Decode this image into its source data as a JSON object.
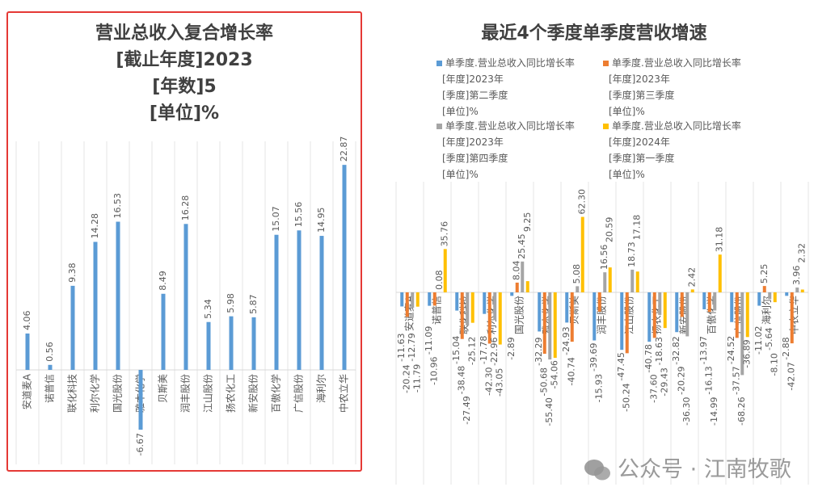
{
  "chart_data": [
    {
      "type": "bar",
      "title_lines": [
        "营业总收入复合增长率",
        "[截止年度]2023",
        "[年数]5",
        "[单位]%"
      ],
      "categories": [
        "安道麦A",
        "诺普信",
        "联化科技",
        "利尔化学",
        "国光股份",
        "雅本化学",
        "贝斯美",
        "润丰股份",
        "江山股份",
        "扬农化工",
        "新安股份",
        "百傲化学",
        "广信股份",
        "海利尔",
        "中农立华"
      ],
      "values": [
        4.06,
        0.56,
        9.38,
        14.28,
        16.53,
        -6.67,
        8.49,
        16.28,
        5.34,
        5.98,
        5.87,
        15.07,
        15.56,
        14.95,
        22.87
      ],
      "color": "#5B9BD5",
      "ylim": [
        -8,
        25
      ]
    },
    {
      "type": "bar",
      "title": "最近4个季度单季度营收增速",
      "categories": [
        "安道麦A",
        "诺普信",
        "联化科技",
        "利尔化学",
        "国光股份",
        "雅本化学",
        "贝斯美",
        "润丰股份",
        "江山股份",
        "扬农化工",
        "新安股份",
        "百傲化学",
        "广信股份",
        "海利尔",
        "中农立华"
      ],
      "series": [
        {
          "name": [
            "单季度.营业总收入同比增长率",
            "[年度]2023年",
            "[季度]第二季度",
            "[单位]%"
          ],
          "color": "#5B9BD5",
          "values": [
            -11.63,
            -11.09,
            -15.04,
            -17.78,
            -2.89,
            -32.29,
            -24.93,
            -39.69,
            -47.45,
            -40.78,
            -32.82,
            -13.97,
            -24.52,
            -11.02,
            -2.88
          ]
        },
        {
          "name": [
            "单季度.营业总收入同比增长率",
            "[年度]2023年",
            "[季度]第三季度",
            "[单位]%"
          ],
          "color": "#ED7D31",
          "values": [
            -20.24,
            -10.96,
            -38.48,
            -42.3,
            8.04,
            -50.68,
            -40.74,
            -15.93,
            -50.24,
            -37.6,
            -20.29,
            -16.13,
            -37.57,
            5.25,
            -42.07
          ]
        },
        {
          "name": [
            "单季度.营业总收入同比增长率",
            "[年度]2023年",
            "[季度]第四季度",
            "[单位]%"
          ],
          "color": "#A5A5A5",
          "values": [
            -12.79,
            0.08,
            -27.49,
            -22.96,
            25.45,
            -55.4,
            5.08,
            16.56,
            18.73,
            -18.63,
            -36.3,
            -14.99,
            -68.26,
            -5.64,
            3.96
          ]
        },
        {
          "name": [
            "单季度.营业总收入同比增长率",
            "[年度]2024年",
            "[季度]第一季度",
            "[单位]%"
          ],
          "color": "#FFC000",
          "values": [
            -11.79,
            35.76,
            -25.12,
            -43.05,
            9.25,
            -54.06,
            62.3,
            20.59,
            17.18,
            -29.43,
            2.42,
            31.18,
            -36.89,
            -8.1,
            2.32
          ]
        }
      ],
      "ylim": [
        -70,
        65
      ]
    }
  ],
  "watermark": "公众号 · 江南牧歌"
}
